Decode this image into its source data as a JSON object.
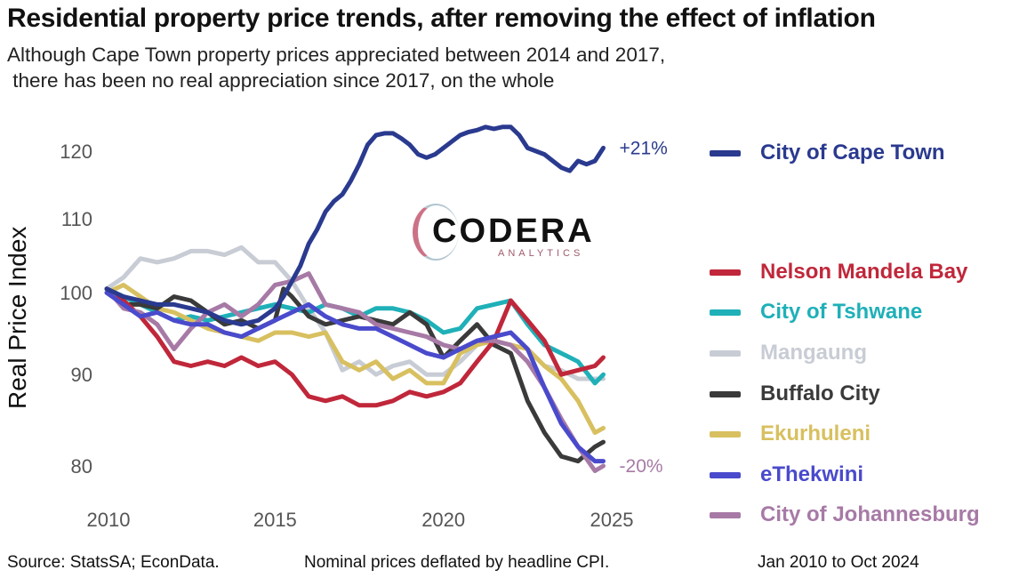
{
  "header": {
    "title": "Residential property price trends, after removing the effect of inflation",
    "subtitle": "Although Cape Town property prices appreciated between 2014 and 2017,\n there has been no real appreciation since 2017, on the whole"
  },
  "watermark": {
    "brand": "CODERA",
    "tagline": "ANALYTICS"
  },
  "footer": {
    "source": "Source: StatsSA; EconData.",
    "note": "Nominal prices deflated by headline CPI.",
    "period": "Jan 2010 to Oct 2024"
  },
  "chart_data": {
    "type": "line",
    "title": "Residential property price trends, after removing the effect of inflation",
    "ylabel": "Real Price Index",
    "xlabel": "",
    "x_ticks": [
      2010,
      2015,
      2020,
      2025
    ],
    "y_ticks": [
      80,
      90,
      100,
      110,
      120
    ],
    "xlim": [
      2010,
      2025
    ],
    "ylim": [
      78,
      125
    ],
    "y_scale": "log",
    "legend_position": "right",
    "end_labels": [
      {
        "series": "City of Cape Town",
        "text": "+21%",
        "color": "#2a3a8f"
      },
      {
        "series": "City of Johannesburg",
        "text": "-20%",
        "color": "#a77aa6"
      }
    ],
    "series": [
      {
        "name": "City of Cape Town",
        "color": "#2a3a8f",
        "x": [
          2010.0,
          2010.5,
          2011.0,
          2011.5,
          2012.0,
          2012.5,
          2013.0,
          2013.5,
          2014.0,
          2014.5,
          2015.0,
          2015.25,
          2015.5,
          2015.75,
          2016.0,
          2016.25,
          2016.5,
          2016.75,
          2017.0,
          2017.25,
          2017.5,
          2017.75,
          2018.0,
          2018.25,
          2018.5,
          2018.75,
          2019.0,
          2019.25,
          2019.5,
          2019.75,
          2020.0,
          2020.25,
          2020.5,
          2020.75,
          2021.0,
          2021.25,
          2021.5,
          2021.75,
          2022.0,
          2022.25,
          2022.5,
          2022.75,
          2023.0,
          2023.25,
          2023.5,
          2023.75,
          2024.0,
          2024.25,
          2024.5,
          2024.75
        ],
        "y": [
          100.5,
          99.5,
          99.0,
          98.5,
          98.5,
          98.0,
          97.5,
          96.5,
          96.0,
          96.5,
          98.0,
          99.5,
          101.5,
          103.5,
          106.5,
          108.5,
          111.0,
          112.5,
          113.5,
          115.5,
          118.0,
          121.0,
          122.5,
          122.8,
          122.8,
          122.0,
          121.0,
          119.5,
          119.0,
          119.5,
          120.5,
          121.5,
          122.5,
          123.0,
          123.3,
          123.8,
          123.5,
          123.8,
          123.8,
          122.5,
          120.5,
          120.0,
          119.5,
          118.5,
          117.5,
          117.0,
          118.5,
          118.0,
          118.5,
          120.5
        ]
      },
      {
        "name": "Nelson Mandela Bay",
        "color": "#c0273a",
        "x": [
          2010.0,
          2010.5,
          2011.0,
          2011.5,
          2012.0,
          2012.5,
          2013.0,
          2013.5,
          2014.0,
          2014.5,
          2015.0,
          2015.5,
          2016.0,
          2016.5,
          2017.0,
          2017.5,
          2018.0,
          2018.5,
          2019.0,
          2019.5,
          2020.0,
          2020.5,
          2021.0,
          2021.5,
          2022.0,
          2022.5,
          2023.0,
          2023.5,
          2024.0,
          2024.5,
          2024.75
        ],
        "y": [
          100.5,
          99.0,
          97.0,
          94.5,
          91.5,
          91.0,
          91.5,
          91.0,
          92.0,
          91.0,
          91.5,
          90.0,
          87.5,
          87.0,
          87.5,
          86.5,
          86.5,
          87.0,
          88.0,
          87.5,
          88.0,
          89.0,
          91.5,
          94.0,
          99.0,
          96.5,
          94.0,
          90.0,
          90.5,
          91.0,
          92.0
        ]
      },
      {
        "name": "City of Tshwane",
        "color": "#1fb0b8",
        "x": [
          2010.0,
          2010.5,
          2011.0,
          2011.5,
          2012.0,
          2012.5,
          2013.0,
          2013.5,
          2014.0,
          2014.5,
          2015.0,
          2015.5,
          2016.0,
          2016.5,
          2017.0,
          2017.5,
          2018.0,
          2018.5,
          2019.0,
          2019.5,
          2020.0,
          2020.5,
          2021.0,
          2021.5,
          2022.0,
          2022.5,
          2023.0,
          2023.5,
          2024.0,
          2024.5,
          2024.75
        ],
        "y": [
          100.5,
          99.5,
          98.5,
          97.5,
          96.5,
          97.0,
          96.5,
          97.0,
          97.5,
          98.0,
          98.5,
          98.0,
          97.5,
          98.5,
          98.0,
          97.0,
          98.0,
          98.0,
          97.5,
          96.5,
          95.0,
          95.5,
          98.0,
          98.5,
          99.0,
          96.0,
          93.5,
          92.5,
          91.5,
          89.0,
          90.0
        ]
      },
      {
        "name": "Mangaung",
        "color": "#c8ccd4",
        "x": [
          2010.0,
          2010.5,
          2011.0,
          2011.5,
          2012.0,
          2012.5,
          2013.0,
          2013.5,
          2014.0,
          2014.5,
          2015.0,
          2015.5,
          2016.0,
          2016.5,
          2017.0,
          2017.5,
          2018.0,
          2018.5,
          2019.0,
          2019.5,
          2020.0,
          2020.5,
          2021.0,
          2021.5,
          2022.0,
          2022.5,
          2023.0,
          2023.5,
          2024.0,
          2024.5,
          2024.75
        ],
        "y": [
          100.5,
          102.0,
          104.5,
          104.0,
          104.5,
          105.5,
          105.5,
          105.0,
          106.0,
          104.0,
          104.0,
          101.5,
          98.0,
          95.0,
          90.5,
          91.5,
          90.0,
          91.0,
          91.5,
          90.0,
          90.0,
          91.5,
          93.5,
          94.5,
          95.0,
          93.0,
          91.0,
          90.5,
          89.5,
          89.5,
          89.5
        ]
      },
      {
        "name": "Buffalo City",
        "color": "#3a3a3a",
        "x": [
          2010.0,
          2010.5,
          2011.0,
          2011.5,
          2012.0,
          2012.5,
          2013.0,
          2013.5,
          2014.0,
          2014.5,
          2015.0,
          2015.25,
          2015.5,
          2016.0,
          2016.5,
          2017.0,
          2017.5,
          2018.0,
          2018.5,
          2019.0,
          2019.5,
          2020.0,
          2020.5,
          2021.0,
          2021.5,
          2022.0,
          2022.5,
          2023.0,
          2023.5,
          2024.0,
          2024.5,
          2024.75
        ],
        "y": [
          100.5,
          98.5,
          98.5,
          98.0,
          99.5,
          99.0,
          97.5,
          96.0,
          96.5,
          95.5,
          96.5,
          100.5,
          99.5,
          97.0,
          96.0,
          96.5,
          97.0,
          96.5,
          96.0,
          97.5,
          96.0,
          92.0,
          94.0,
          96.0,
          93.5,
          92.5,
          87.0,
          83.5,
          81.0,
          80.5,
          82.0,
          82.5
        ]
      },
      {
        "name": "Ekurhuleni",
        "color": "#d8c060",
        "x": [
          2010.0,
          2010.5,
          2011.0,
          2011.5,
          2012.0,
          2012.5,
          2013.0,
          2013.5,
          2014.0,
          2014.5,
          2015.0,
          2015.5,
          2016.0,
          2016.5,
          2017.0,
          2017.5,
          2018.0,
          2018.5,
          2019.0,
          2019.5,
          2020.0,
          2020.5,
          2021.0,
          2021.5,
          2022.0,
          2022.5,
          2023.0,
          2023.5,
          2024.0,
          2024.5,
          2024.75
        ],
        "y": [
          100.0,
          101.0,
          99.5,
          98.0,
          97.5,
          96.5,
          95.5,
          95.0,
          94.5,
          94.0,
          95.0,
          95.0,
          94.5,
          95.0,
          91.5,
          90.5,
          91.5,
          89.5,
          90.5,
          89.0,
          89.0,
          92.5,
          93.5,
          94.0,
          93.5,
          93.0,
          91.0,
          89.5,
          87.0,
          83.5,
          84.0
        ]
      },
      {
        "name": "eThekwini",
        "color": "#4a4acc",
        "x": [
          2010.0,
          2010.5,
          2011.0,
          2011.5,
          2012.0,
          2012.5,
          2013.0,
          2013.5,
          2014.0,
          2014.5,
          2015.0,
          2015.5,
          2016.0,
          2016.5,
          2017.0,
          2017.5,
          2018.0,
          2018.5,
          2019.0,
          2019.5,
          2020.0,
          2020.5,
          2021.0,
          2021.5,
          2022.0,
          2022.5,
          2023.0,
          2023.5,
          2024.0,
          2024.5,
          2024.75
        ],
        "y": [
          100.0,
          98.5,
          97.0,
          97.5,
          96.5,
          96.0,
          96.0,
          95.0,
          94.5,
          95.5,
          96.5,
          97.5,
          98.5,
          97.0,
          96.0,
          95.5,
          95.5,
          94.5,
          93.5,
          92.5,
          92.0,
          93.0,
          94.0,
          94.5,
          95.0,
          93.0,
          88.5,
          84.5,
          82.0,
          80.5,
          80.5
        ]
      },
      {
        "name": "City of Johannesburg",
        "color": "#a77aa6",
        "x": [
          2010.0,
          2010.5,
          2011.0,
          2011.5,
          2012.0,
          2012.5,
          2013.0,
          2013.5,
          2014.0,
          2014.5,
          2015.0,
          2015.5,
          2016.0,
          2016.5,
          2017.0,
          2017.5,
          2018.0,
          2018.5,
          2019.0,
          2019.5,
          2020.0,
          2020.5,
          2021.0,
          2021.5,
          2022.0,
          2022.5,
          2023.0,
          2023.5,
          2024.0,
          2024.5,
          2024.75
        ],
        "y": [
          100.5,
          98.0,
          97.5,
          96.0,
          93.0,
          95.5,
          97.5,
          98.5,
          97.0,
          98.5,
          101.0,
          101.5,
          102.5,
          98.5,
          98.0,
          97.5,
          96.0,
          95.5,
          95.0,
          94.5,
          93.5,
          93.0,
          94.0,
          94.0,
          93.5,
          91.5,
          88.5,
          85.0,
          82.0,
          79.5,
          80.0
        ]
      }
    ]
  }
}
